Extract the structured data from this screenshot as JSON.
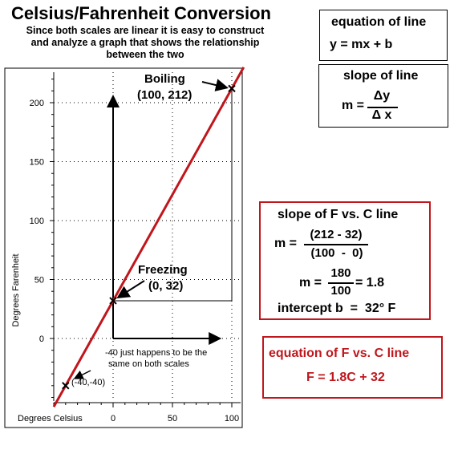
{
  "header": {
    "title": "Celsius/Fahrenheit Conversion",
    "subtitle_lines": [
      "Since both scales are linear it is easy to construct",
      "and analyze a graph that shows the relationship",
      "between the two"
    ]
  },
  "equation_box": {
    "title": "equation of line",
    "formula": "y = mx + b"
  },
  "slope_box": {
    "title": "slope of line",
    "m": "m =",
    "num": "Δy",
    "den": "Δ x"
  },
  "fc_slope_box": {
    "title": "slope of F vs. C line",
    "m1": "m =",
    "num1": "(212 - 32)",
    "den1": "(100  -  0)",
    "m2": "m =",
    "num2": "180",
    "den2": "100",
    "result": "= 1.8",
    "intercept": "intercept b  =  32° F"
  },
  "fc_equation_box": {
    "title": "equation of F vs. C line",
    "formula": "F = 1.8C + 32"
  },
  "colors": {
    "line": "#c0161c",
    "box_border": "#c0161c",
    "grid": "#000000"
  },
  "chart_data": {
    "type": "line",
    "xlabel": "Degrees Celsius",
    "ylabel": "Degrees Farenheit",
    "xlim": [
      -50,
      110
    ],
    "ylim": [
      -50,
      225
    ],
    "x_ticks": [
      0,
      50,
      100
    ],
    "y_ticks": [
      0,
      50,
      100,
      150,
      200
    ],
    "grid": "dotted",
    "series": [
      {
        "x": [
          -50,
          110
        ],
        "y": [
          -58,
          230
        ]
      }
    ],
    "points": [
      {
        "x": 100,
        "y": 212,
        "name": "Boiling",
        "label": "(100, 212)"
      },
      {
        "x": 0,
        "y": 32,
        "name": "Freezing",
        "label": "(0, 32)"
      },
      {
        "x": -40,
        "y": -40,
        "name": "",
        "label": "(-40,-40)"
      }
    ],
    "note_lines": [
      "-40 just happens to be the",
      "same on both scales"
    ]
  }
}
